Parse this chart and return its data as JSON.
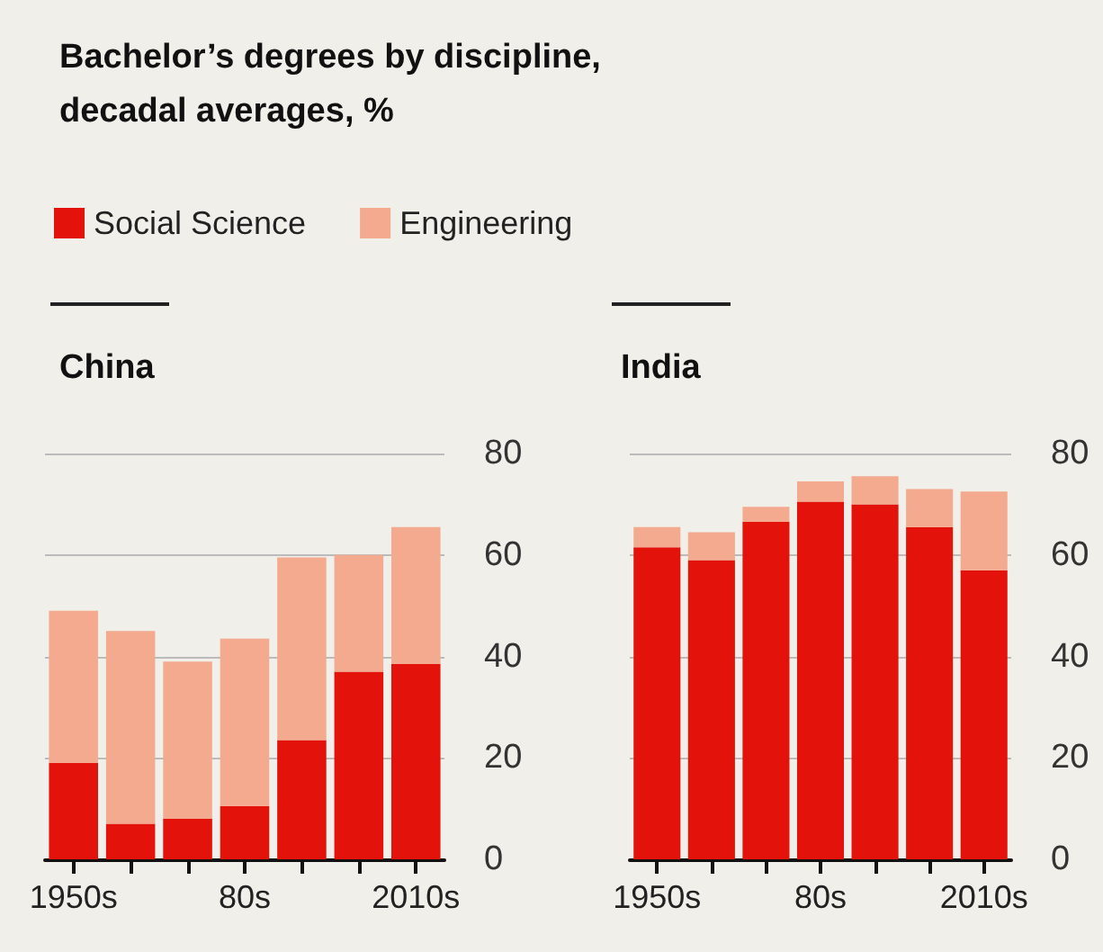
{
  "chart_data": [
    {
      "type": "bar",
      "title": "Bachelor’s degrees by discipline, decadal averages, %",
      "subtitle": "China",
      "categories": [
        "1950s",
        null,
        null,
        "80s",
        null,
        null,
        "2010s"
      ],
      "stacked": true,
      "ylim": [
        0,
        80
      ],
      "yticks": [
        0,
        20,
        40,
        60,
        80
      ],
      "grid": "y",
      "legend": "top",
      "series": [
        {
          "name": "Social Science",
          "color": "#e3120b",
          "values": [
            19,
            7,
            8,
            10.5,
            23.5,
            37,
            38.5
          ]
        },
        {
          "name": "Engineering",
          "color": "#f4aa8f",
          "values": [
            30,
            38,
            31,
            33,
            36,
            23,
            27
          ]
        }
      ]
    },
    {
      "type": "bar",
      "subtitle": "India",
      "categories": [
        "1950s",
        null,
        null,
        "80s",
        null,
        null,
        "2010s"
      ],
      "stacked": true,
      "ylim": [
        0,
        80
      ],
      "yticks": [
        0,
        20,
        40,
        60,
        80
      ],
      "grid": "y",
      "series": [
        {
          "color": "#e3120b",
          "values": [
            61.5,
            59,
            66.5,
            70.5,
            70,
            65.5,
            57
          ]
        },
        {
          "color": "#f4aa8f",
          "values": [
            4,
            5.5,
            3,
            4,
            5.5,
            7.5,
            15.5
          ]
        }
      ]
    }
  ]
}
